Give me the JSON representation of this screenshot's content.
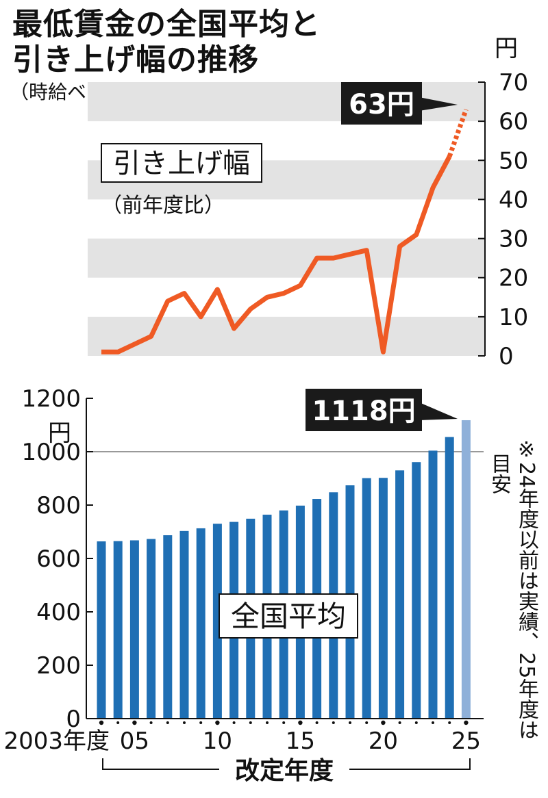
{
  "header": {
    "title_line1": "最低賃金の全国平均と",
    "title_line2": "引き上げ幅の推移",
    "subtitle": "（時給ベース）"
  },
  "top_label": {
    "main": "引き上げ幅",
    "sub": "（前年度比）"
  },
  "bottom_label": "全国平均",
  "note": {
    "mark": "※",
    "line1": "24年度以前は実績、25年度は",
    "line2": "目安"
  },
  "colors": {
    "line": "#ef5a24",
    "bar": "#1f6fb4",
    "bar_estimate": "#8fb0d9",
    "band": "#e3e3e3",
    "callout": "#1a1a1a"
  },
  "chart_data": [
    {
      "type": "line",
      "unit": "円",
      "y_ticks": [
        0,
        10,
        20,
        30,
        40,
        50,
        60,
        70
      ],
      "ylim": [
        0,
        70
      ],
      "x": [
        2003,
        2004,
        2005,
        2006,
        2007,
        2008,
        2009,
        2010,
        2011,
        2012,
        2013,
        2014,
        2015,
        2016,
        2017,
        2018,
        2019,
        2020,
        2021,
        2022,
        2023,
        2024,
        2025
      ],
      "values": [
        1,
        1,
        3,
        5,
        14,
        16,
        10,
        17,
        7,
        12,
        15,
        16,
        18,
        25,
        25,
        26,
        27,
        1,
        28,
        31,
        43,
        51,
        63
      ],
      "callout": "63円",
      "estimate_from": 2024
    },
    {
      "type": "bar",
      "unit": "円",
      "y_ticks": [
        0,
        200,
        400,
        600,
        800,
        1000,
        1200
      ],
      "ylim": [
        0,
        1200
      ],
      "categories": [
        2003,
        2004,
        2005,
        2006,
        2007,
        2008,
        2009,
        2010,
        2011,
        2012,
        2013,
        2014,
        2015,
        2016,
        2017,
        2018,
        2019,
        2020,
        2021,
        2022,
        2023,
        2024,
        2025
      ],
      "values": [
        664,
        665,
        668,
        673,
        687,
        703,
        713,
        730,
        737,
        749,
        764,
        780,
        798,
        823,
        848,
        874,
        901,
        902,
        930,
        961,
        1004,
        1055,
        1118
      ],
      "callout": "1118円",
      "estimate_index": 22,
      "x_tick_labels": [
        "2003年度",
        "05",
        "10",
        "15",
        "20",
        "25"
      ],
      "xlabel": "改定年度"
    }
  ]
}
